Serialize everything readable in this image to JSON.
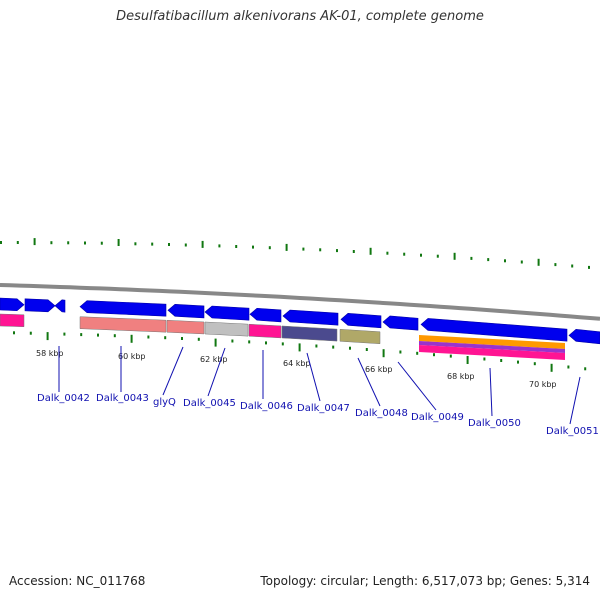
{
  "title": "Desulfatibacillum alkenivorans AK-01, complete genome",
  "footer": {
    "accession": "Accession: NC_011768",
    "summary": "Topology: circular; Length: 6,517,073 bp; Genes: 5,314"
  },
  "colors": {
    "backbone": "#888888",
    "cds": "#0000ee",
    "tick": "#117711",
    "label": "#1010b0"
  },
  "kbp_labels": [
    "58 kbp",
    "60 kbp",
    "62 kbp",
    "64 kbp",
    "66 kbp",
    "68 kbp",
    "70 kbp"
  ],
  "gene_labels": [
    "Dalk_0042",
    "Dalk_0043",
    "glyQ",
    "Dalk_0045",
    "Dalk_0046",
    "Dalk_0047",
    "Dalk_0048",
    "Dalk_0049",
    "Dalk_0050",
    "Dalk_0051"
  ]
}
